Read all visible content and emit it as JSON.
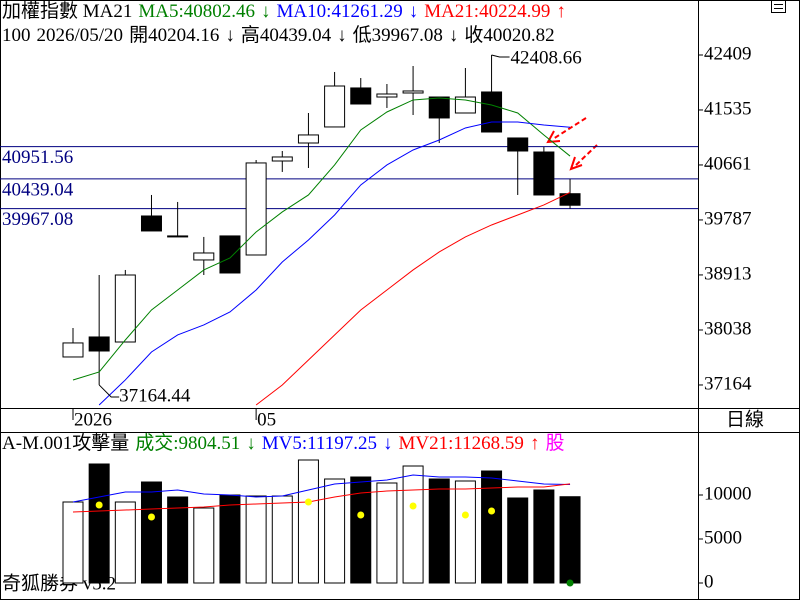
{
  "header": {
    "line1_prefix": "加權指數 MA21",
    "line2": {
      "count": 100,
      "date": "2026/05/20",
      "open_label": "開",
      "high_label": "高",
      "low_label": "低",
      "close_label": "收",
      "arrow": "↓"
    }
  },
  "period": "日線",
  "footer": "奇狐勝券 v5.2",
  "chart_data": [
    {
      "type": "candlestick",
      "categories": [
        "2026",
        null,
        null,
        null,
        null,
        null,
        null,
        "05",
        null,
        null,
        null,
        null,
        null,
        null,
        null,
        null,
        null,
        null,
        null,
        null
      ],
      "open": [
        37609,
        37927,
        37847,
        39850,
        39533,
        39151,
        39533,
        39230,
        40724,
        41010,
        41265,
        41885,
        41741,
        41805,
        41741,
        41487,
        41821,
        41090,
        40867,
        40204.16
      ],
      "high": [
        38070,
        38912,
        38992,
        40184,
        40073,
        39517,
        39533,
        40740,
        40883,
        41487,
        42139,
        42043,
        41948,
        42234,
        41741,
        42202,
        42408.66,
        41090,
        40947,
        40439.04
      ],
      "low": [
        37609,
        37164.44,
        37847,
        39612,
        39520,
        38912,
        38944,
        39230,
        40550,
        40613,
        41265,
        41630,
        41567,
        41455,
        41010,
        41487,
        41185,
        40184,
        40184,
        39967.08
      ],
      "close": [
        37832,
        37704,
        38912,
        39612,
        39520,
        39262,
        38944,
        40693,
        40788,
        41138,
        41916,
        41630,
        41789,
        41837,
        41408,
        41741,
        41185,
        40883,
        40184,
        40020.82
      ],
      "up_color": "#ffffff",
      "down_color": "#000000",
      "series": [
        {
          "name": "MA5:",
          "color": "#008000",
          "trend": "↓",
          "values": [
            37243,
            37371,
            37879,
            38356,
            38674,
            38992,
            39183,
            39596,
            39914,
            40184,
            40661,
            41217,
            41503,
            41694,
            41726,
            41694,
            41614,
            41487,
            41138,
            40802.46
          ]
        },
        {
          "name": "MA10:",
          "color": "#0000ff",
          "trend": "↓",
          "values": [
            null,
            36846,
            37244,
            37688,
            37959,
            38118,
            38324,
            38674,
            39119,
            39469,
            39866,
            40343,
            40661,
            40899,
            41058,
            41249,
            41344,
            41344,
            41296,
            41261.29
          ]
        },
        {
          "name": "MA21:",
          "color": "#ff0000",
          "trend": "↑",
          "values": [
            null,
            null,
            null,
            null,
            null,
            null,
            null,
            36846,
            37164,
            37561,
            37959,
            38356,
            38674,
            38992,
            39278,
            39517,
            39707,
            39866,
            40025,
            40224.99
          ]
        }
      ],
      "hlines": [
        40951.56,
        40439.04,
        39967.08
      ],
      "hline_color": "#000080",
      "ylim": [
        36798,
        43283
      ],
      "yticks": [
        37164,
        38038,
        38913,
        39787,
        40661,
        41535,
        42409
      ]
    },
    {
      "type": "bar",
      "title": "A-M.001攻擊量",
      "volume_label": "成交:",
      "color": "#008000",
      "trend": "↓",
      "values": [
        9205,
        13523,
        9205,
        11477,
        9773,
        8523,
        10000,
        9886,
        9886,
        13977,
        11818,
        12045,
        11364,
        13295,
        11818,
        11591,
        12727,
        9659,
        10568,
        9804.51
      ],
      "series": [
        {
          "name": "MV5:",
          "color": "#0000ff",
          "trend": "↓",
          "values": [
            9205,
            9773,
            10341,
            10341,
            10568,
            10114,
            10000,
            9773,
            9886,
            10568,
            11250,
            11477,
            11705,
            12273,
            12045,
            12045,
            11932,
            11591,
            11250,
            11197.25
          ]
        },
        {
          "name": "MV21:",
          "color": "#ff0000",
          "trend": "↑",
          "values": [
            8068,
            8182,
            8295,
            8409,
            8523,
            8636,
            8864,
            8977,
            9091,
            9205,
            9773,
            10227,
            10455,
            10568,
            10682,
            10682,
            10795,
            10909,
            10909,
            11268.59
          ]
        }
      ],
      "signals": [
        {
          "color": "#ffff00",
          "values": [
            null,
            8864,
            null,
            7500,
            null,
            null,
            null,
            null,
            null,
            9205,
            null,
            7727,
            null,
            8750,
            null,
            7727,
            8182,
            null,
            null,
            null
          ]
        },
        {
          "color": "#008000",
          "values": [
            null,
            null,
            null,
            null,
            null,
            null,
            null,
            null,
            null,
            null,
            null,
            null,
            null,
            null,
            null,
            null,
            null,
            null,
            null,
            0
          ]
        }
      ],
      "unit": "股",
      "unit_color": "#ff00ff",
      "ylim": [
        -1932,
        17159
      ],
      "yticks": [
        0,
        5000,
        10000
      ]
    }
  ]
}
